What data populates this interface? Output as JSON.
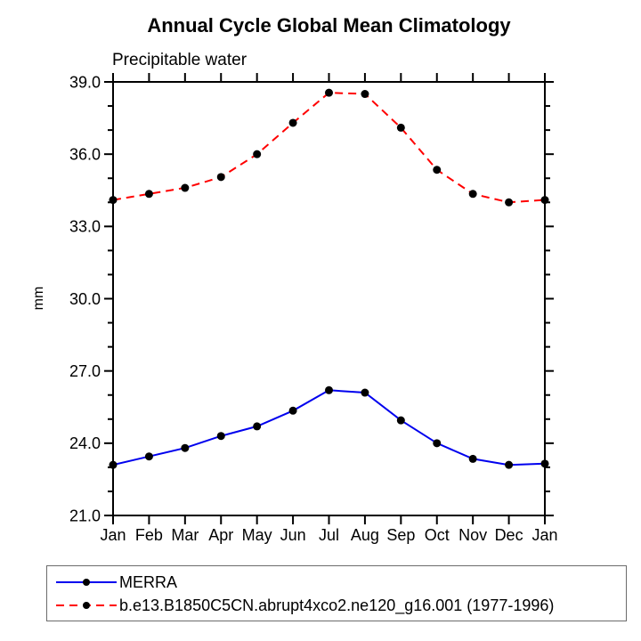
{
  "page": {
    "title": "Annual Cycle Global Mean Climatology",
    "subtitle": "Precipitable water"
  },
  "chart_data": {
    "type": "line",
    "title": "Annual Cycle Global Mean Climatology",
    "subtitle": "Precipitable water",
    "xlabel": "",
    "ylabel": "mm",
    "categories": [
      "Jan",
      "Feb",
      "Mar",
      "Apr",
      "May",
      "Jun",
      "Jul",
      "Aug",
      "Sep",
      "Oct",
      "Nov",
      "Dec",
      "Jan"
    ],
    "ylim": [
      21.0,
      39.0
    ],
    "ytick_major": [
      21.0,
      24.0,
      27.0,
      30.0,
      33.0,
      36.0,
      39.0
    ],
    "ytick_labels": [
      "21.0",
      "24.0",
      "27.0",
      "30.0",
      "33.0",
      "36.0",
      "39.0"
    ],
    "ytick_minor_step": 1.0,
    "grid": false,
    "legend_position": "bottom",
    "marker": "circle",
    "marker_color": "#000000",
    "series": [
      {
        "id": "merra",
        "name": "MERRA",
        "color": "#0000ee",
        "style": "solid",
        "values": [
          23.1,
          23.45,
          23.8,
          24.3,
          24.7,
          25.35,
          26.2,
          26.1,
          24.95,
          24.0,
          23.35,
          23.1,
          23.15
        ]
      },
      {
        "id": "model",
        "name": "b.e13.B1850C5CN.abrupt4xco2.ne120_g16.001 (1977-1996)",
        "color": "#ff0000",
        "style": "dashed",
        "values": [
          34.1,
          34.35,
          34.6,
          35.05,
          36.0,
          37.3,
          38.55,
          38.5,
          37.1,
          35.35,
          34.35,
          34.0,
          34.1
        ]
      }
    ]
  },
  "colors": {
    "axis": "#000000",
    "text": "#000000",
    "background": "#ffffff",
    "legend_border": "#6b6b6b"
  }
}
